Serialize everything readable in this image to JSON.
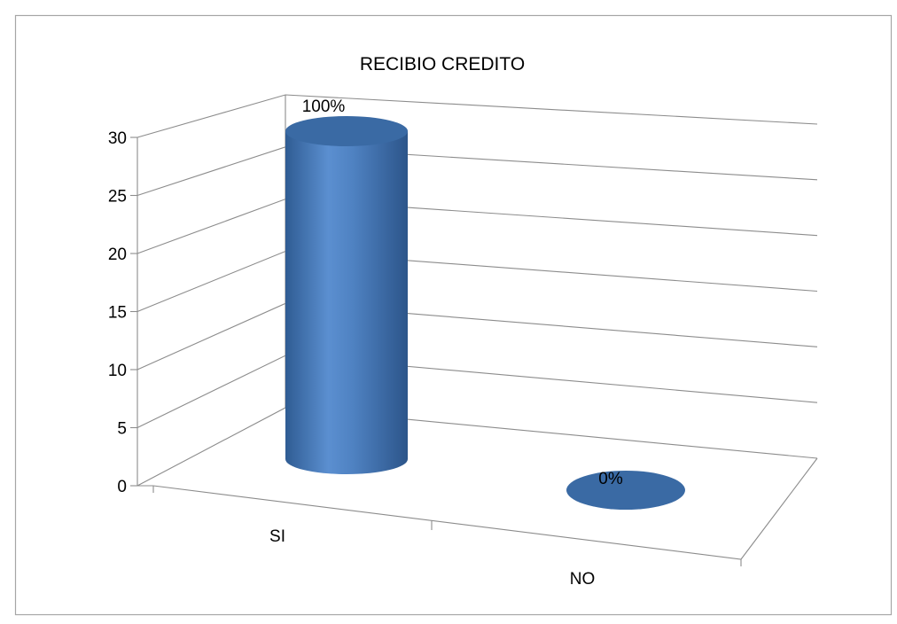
{
  "chart_data": {
    "type": "bar",
    "style": "3d-cylinder",
    "title": "RECIBIO CREDITO",
    "categories": [
      "SI",
      "NO"
    ],
    "values": [
      30,
      0
    ],
    "data_labels": [
      "100%",
      "0%"
    ],
    "ylim": [
      0,
      30
    ],
    "yticks": [
      0,
      5,
      10,
      15,
      20,
      25,
      30
    ],
    "grid": true,
    "legend": "none",
    "colors": {
      "bar": "#4f81bd",
      "bar_dark": "#2e5a8f",
      "bar_top": "#3a6aa4",
      "grid": "#8c8c8c",
      "frame": "#a6a6a6"
    }
  }
}
